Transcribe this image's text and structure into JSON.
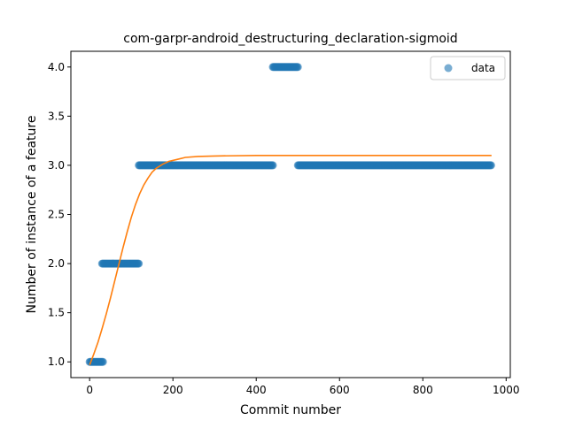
{
  "chart_data": {
    "type": "scatter",
    "title": "com-garpr-android_destructuring_declaration-sigmoid",
    "xlabel": "Commit number",
    "ylabel": "Number of instance of a feature",
    "xlim": [
      -45,
      1010
    ],
    "ylim": [
      0.84,
      4.16
    ],
    "xticks": [
      0,
      200,
      400,
      600,
      800,
      1000
    ],
    "yticks": [
      1.0,
      1.5,
      2.0,
      2.5,
      3.0,
      3.5,
      4.0
    ],
    "xtick_labels": [
      "0",
      "200",
      "400",
      "600",
      "800",
      "1000"
    ],
    "ytick_labels": [
      "1.0",
      "1.5",
      "2.0",
      "2.5",
      "3.0",
      "3.5",
      "4.0"
    ],
    "legend": {
      "position": "top-right",
      "entries": [
        "data"
      ]
    },
    "grid": false,
    "series": [
      {
        "name": "data",
        "kind": "scatter",
        "color": "#1f77b4",
        "segments": [
          {
            "x_start": 0,
            "x_end": 32,
            "y": 1.0
          },
          {
            "x_start": 30,
            "x_end": 118,
            "y": 2.0
          },
          {
            "x_start": 118,
            "x_end": 440,
            "y": 3.0
          },
          {
            "x_start": 440,
            "x_end": 500,
            "y": 4.0
          },
          {
            "x_start": 500,
            "x_end": 965,
            "y": 3.0
          }
        ]
      },
      {
        "kind": "line",
        "color": "#ff7f0e",
        "points": [
          [
            0,
            0.97
          ],
          [
            10,
            1.08
          ],
          [
            20,
            1.2
          ],
          [
            30,
            1.34
          ],
          [
            40,
            1.49
          ],
          [
            50,
            1.65
          ],
          [
            60,
            1.82
          ],
          [
            70,
            1.99
          ],
          [
            80,
            2.16
          ],
          [
            90,
            2.32
          ],
          [
            100,
            2.47
          ],
          [
            110,
            2.6
          ],
          [
            120,
            2.71
          ],
          [
            130,
            2.8
          ],
          [
            140,
            2.87
          ],
          [
            150,
            2.93
          ],
          [
            160,
            2.97
          ],
          [
            175,
            3.01
          ],
          [
            190,
            3.04
          ],
          [
            210,
            3.06
          ],
          [
            230,
            3.08
          ],
          [
            260,
            3.09
          ],
          [
            300,
            3.095
          ],
          [
            400,
            3.1
          ],
          [
            600,
            3.1
          ],
          [
            800,
            3.1
          ],
          [
            965,
            3.1
          ]
        ]
      }
    ]
  }
}
